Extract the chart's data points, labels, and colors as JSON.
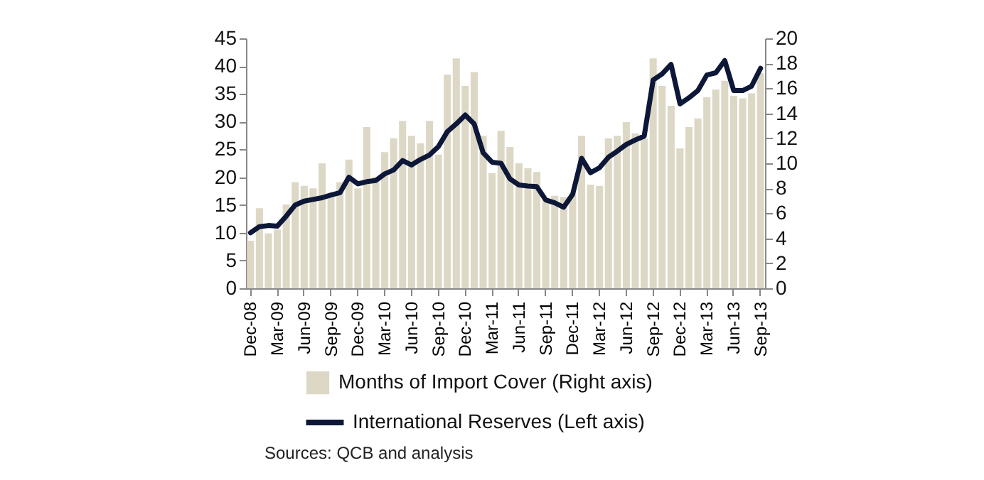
{
  "chart_data": {
    "type": "bar",
    "categories": [
      "Dec-08",
      null,
      null,
      "Mar-09",
      null,
      null,
      "Jun-09",
      null,
      null,
      "Sep-09",
      null,
      null,
      "Dec-09",
      null,
      null,
      "Mar-10",
      null,
      null,
      "Jun-10",
      null,
      null,
      "Sep-10",
      null,
      null,
      "Dec-10",
      null,
      null,
      "Mar-11",
      null,
      null,
      "Jun-11",
      null,
      null,
      "Sep-11",
      null,
      null,
      "Dec-11",
      null,
      null,
      "Mar-12",
      null,
      null,
      "Jun-12",
      null,
      null,
      "Sep-12",
      null,
      null,
      "Dec-12",
      null,
      null,
      "Mar-13",
      null,
      null,
      "Jun-13",
      null,
      null,
      "Sep-13"
    ],
    "series": [
      {
        "name": "Months of Import Cover (Right axis)",
        "axis": "y2",
        "color": "#ddd8c6",
        "values": [
          3.8,
          6.4,
          4.4,
          4.7,
          6.7,
          8.5,
          8.2,
          8.0,
          10.0,
          7.3,
          8.5,
          10.3,
          8.0,
          12.9,
          8.9,
          10.9,
          12.0,
          13.4,
          12.2,
          11.6,
          13.4,
          10.7,
          17.1,
          18.4,
          16.2,
          17.3,
          12.2,
          9.2,
          12.6,
          11.3,
          10.0,
          9.6,
          9.3,
          7.2,
          7.4,
          7.3,
          7.6,
          12.2,
          8.3,
          8.2,
          12.0,
          12.2,
          13.3,
          12.4,
          12.0,
          18.4,
          16.2,
          14.6,
          11.2,
          12.9,
          13.6,
          15.3,
          15.9,
          16.6,
          15.4,
          15.2,
          15.6,
          17.2
        ]
      },
      {
        "name": "International Reserves (Left axis)",
        "type": "line",
        "color": "#0d1838",
        "values": [
          10,
          11.1,
          11.3,
          11.2,
          13,
          15,
          15.7,
          16,
          16.3,
          16.8,
          17.2,
          20,
          18.8,
          19.2,
          19.4,
          20.6,
          21.3,
          23,
          22.2,
          23.2,
          24,
          25.5,
          28.2,
          29.6,
          31.2,
          29.6,
          24.4,
          22.7,
          22.5,
          19.7,
          18.6,
          18.4,
          18.3,
          15.9,
          15.4,
          14.6,
          16.9,
          23.4,
          20.8,
          21.7,
          23.6,
          24.7,
          25.9,
          26.7,
          27.4,
          37.5,
          38.6,
          40.3,
          33.2,
          34.3,
          35.6,
          38.4,
          38.8,
          41,
          35.6,
          35.6,
          36.4,
          39.6
        ]
      }
    ],
    "ylim": [
      0,
      45
    ],
    "yticks": [
      0,
      5,
      10,
      15,
      20,
      25,
      30,
      35,
      40,
      45
    ],
    "y2lim": [
      0,
      20
    ],
    "y2ticks": [
      0,
      2,
      4,
      6,
      8,
      10,
      12,
      14,
      16,
      18,
      20
    ],
    "legend": "bottom",
    "annotations": [
      "Sources: QCB and analysis"
    ]
  }
}
